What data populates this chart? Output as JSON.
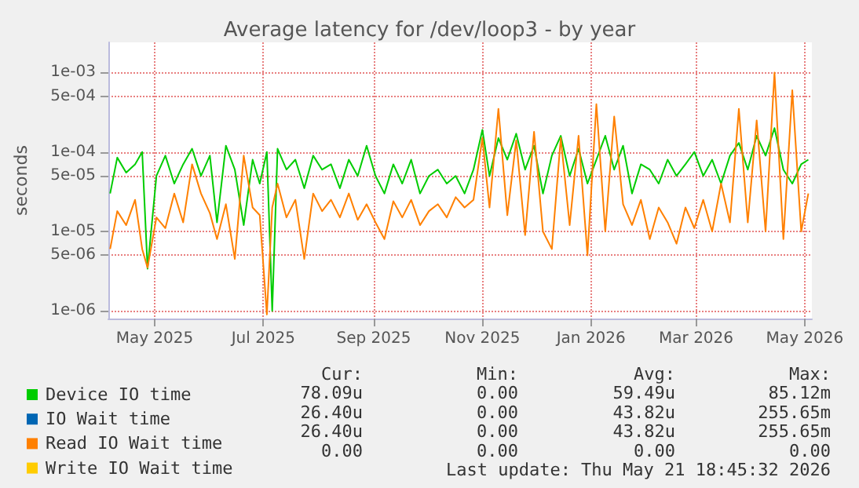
{
  "chart_data": {
    "type": "line",
    "title": "Average latency for /dev/loop3 - by year",
    "ylabel": "seconds",
    "x": [
      "2025-04-06",
      "2025-04-10",
      "2025-04-15",
      "2025-04-20",
      "2025-04-24",
      "2025-04-27",
      "2025-05-02",
      "2025-05-07",
      "2025-05-12",
      "2025-05-17",
      "2025-05-22",
      "2025-05-27",
      "2025-06-01",
      "2025-06-05",
      "2025-06-10",
      "2025-06-15",
      "2025-06-20",
      "2025-06-25",
      "2025-06-29",
      "2025-07-03",
      "2025-07-06",
      "2025-07-09",
      "2025-07-14",
      "2025-07-19",
      "2025-07-24",
      "2025-07-29",
      "2025-08-03",
      "2025-08-08",
      "2025-08-13",
      "2025-08-18",
      "2025-08-23",
      "2025-08-28",
      "2025-09-02",
      "2025-09-07",
      "2025-09-12",
      "2025-09-17",
      "2025-09-22",
      "2025-09-27",
      "2025-10-02",
      "2025-10-07",
      "2025-10-12",
      "2025-10-17",
      "2025-10-22",
      "2025-10-27",
      "2025-11-01",
      "2025-11-05",
      "2025-11-10",
      "2025-11-15",
      "2025-11-20",
      "2025-11-25",
      "2025-11-30",
      "2025-12-05",
      "2025-12-10",
      "2025-12-15",
      "2025-12-20",
      "2025-12-25",
      "2025-12-30",
      "2026-01-04",
      "2026-01-09",
      "2026-01-14",
      "2026-01-19",
      "2026-01-24",
      "2026-01-29",
      "2026-02-03",
      "2026-02-08",
      "2026-02-13",
      "2026-02-18",
      "2026-02-23",
      "2026-02-28",
      "2026-03-05",
      "2026-03-10",
      "2026-03-15",
      "2026-03-20",
      "2026-03-25",
      "2026-03-30",
      "2026-04-04",
      "2026-04-09",
      "2026-04-14",
      "2026-04-19",
      "2026-04-24",
      "2026-04-29",
      "2026-05-03"
    ],
    "series": [
      {
        "name": "Device IO time",
        "color": "#00cc00",
        "values": [
          3e-05,
          8.5e-05,
          5.5e-05,
          7e-05,
          0.0001,
          3.4e-06,
          5e-05,
          9e-05,
          4e-05,
          7e-05,
          0.00011,
          5e-05,
          9e-05,
          1.3e-05,
          0.00012,
          6e-05,
          1.2e-05,
          8e-05,
          4e-05,
          0.0001,
          1e-06,
          0.00011,
          6e-05,
          8e-05,
          3.5e-05,
          9e-05,
          6e-05,
          7e-05,
          3.5e-05,
          8e-05,
          5e-05,
          0.00012,
          5e-05,
          3e-05,
          7e-05,
          4e-05,
          8e-05,
          3e-05,
          5e-05,
          6e-05,
          4e-05,
          5e-05,
          3e-05,
          6e-05,
          0.00019,
          5e-05,
          0.00015,
          8e-05,
          0.00017,
          6e-05,
          0.00012,
          3e-05,
          9e-05,
          0.00016,
          5e-05,
          0.00011,
          4e-05,
          8e-05,
          0.00016,
          6e-05,
          0.00012,
          3e-05,
          7e-05,
          6e-05,
          4e-05,
          8e-05,
          5e-05,
          7e-05,
          0.0001,
          5e-05,
          8e-05,
          4e-05,
          9e-05,
          0.00013,
          6e-05,
          0.00016,
          9e-05,
          0.0002,
          6e-05,
          4e-05,
          7e-05,
          8e-05
        ]
      },
      {
        "name": "IO Wait time",
        "color": "#0066b3",
        "values": [
          null,
          null,
          null,
          null,
          null,
          null,
          null,
          null,
          null,
          null,
          null,
          null,
          null,
          null,
          null,
          null,
          null,
          null,
          null,
          null,
          null,
          null,
          null,
          null,
          null,
          null,
          null,
          null,
          null,
          null,
          null,
          null,
          null,
          null,
          null,
          null,
          null,
          null,
          null,
          null,
          null,
          null,
          null,
          null,
          null,
          null,
          null,
          null,
          null,
          null,
          null,
          null,
          null,
          null,
          null,
          null,
          null,
          null,
          null,
          null,
          null,
          null,
          null,
          null,
          null,
          null,
          null,
          null,
          null,
          null,
          null,
          null,
          null,
          null,
          null,
          null,
          null,
          null,
          null,
          null,
          null,
          null
        ]
      },
      {
        "name": "Read IO Wait time",
        "color": "#ff8000",
        "values": [
          6e-06,
          1.8e-05,
          1.2e-05,
          2.5e-05,
          6e-06,
          3.5e-06,
          1.5e-05,
          1.1e-05,
          3e-05,
          1.3e-05,
          7e-05,
          3e-05,
          1.7e-05,
          8e-06,
          2.2e-05,
          4.5e-06,
          9e-05,
          2e-05,
          1.6e-05,
          9e-07,
          2e-05,
          4e-05,
          1.5e-05,
          2.5e-05,
          4.5e-06,
          3e-05,
          1.8e-05,
          2.5e-05,
          1.5e-05,
          3e-05,
          1.4e-05,
          2.2e-05,
          1.3e-05,
          8e-06,
          2.4e-05,
          1.5e-05,
          2.5e-05,
          1.2e-05,
          1.8e-05,
          2.2e-05,
          1.5e-05,
          2.7e-05,
          2e-05,
          2.5e-05,
          0.00015,
          2e-05,
          0.00035,
          1.6e-05,
          0.00014,
          9e-06,
          0.00018,
          1e-05,
          6e-06,
          0.00015,
          1.2e-05,
          0.00016,
          5e-06,
          0.0004,
          1e-05,
          0.00028,
          2.2e-05,
          1.2e-05,
          2.5e-05,
          8e-06,
          2e-05,
          1.3e-05,
          7e-06,
          2e-05,
          1.1e-05,
          2.5e-05,
          1e-05,
          4e-05,
          1.3e-05,
          0.00035,
          1.3e-05,
          0.00025,
          1e-05,
          0.001,
          8e-06,
          0.0006,
          1e-05,
          3e-05
        ]
      },
      {
        "name": "Write IO Wait time",
        "color": "#ffcc00",
        "values": [
          null,
          null,
          null,
          null,
          null,
          null,
          null,
          null,
          null,
          null,
          null,
          null,
          null,
          null,
          null,
          null,
          null,
          null,
          null,
          null,
          null,
          null,
          null,
          null,
          null,
          null,
          null,
          null,
          null,
          null,
          null,
          null,
          null,
          null,
          null,
          null,
          null,
          null,
          null,
          null,
          null,
          null,
          null,
          null,
          null,
          null,
          null,
          null,
          null,
          null,
          null,
          null,
          null,
          null,
          null,
          null,
          null,
          null,
          null,
          null,
          null,
          null,
          null,
          null,
          null,
          null,
          null,
          null,
          null,
          null,
          null,
          null,
          null,
          null,
          null,
          null,
          null,
          null,
          null,
          null,
          null,
          null
        ]
      }
    ],
    "xlim": [
      "2025-04-05",
      "2026-05-05"
    ],
    "xticks": [
      {
        "value": "2025-05-01",
        "label": "May 2025"
      },
      {
        "value": "2025-07-01",
        "label": "Jul 2025"
      },
      {
        "value": "2025-09-01",
        "label": "Sep 2025"
      },
      {
        "value": "2025-11-01",
        "label": "Nov 2025"
      },
      {
        "value": "2026-01-01",
        "label": "Jan 2026"
      },
      {
        "value": "2026-03-01",
        "label": "Mar 2026"
      },
      {
        "value": "2026-05-01",
        "label": "May 2026"
      }
    ],
    "ylim": [
      8e-07,
      0.0024
    ],
    "yticks": [
      {
        "value": 1e-06,
        "label": "1e-06"
      },
      {
        "value": 5e-06,
        "label": "5e-06"
      },
      {
        "value": 1e-05,
        "label": "1e-05"
      },
      {
        "value": 5e-05,
        "label": "5e-05"
      },
      {
        "value": 0.0001,
        "label": "1e-04"
      },
      {
        "value": 0.0005,
        "label": "5e-04"
      },
      {
        "value": 0.001,
        "label": "1e-03"
      }
    ],
    "log": "y",
    "grid": true,
    "legend": "bottom left",
    "marker": "none",
    "annotations": [
      "Cur:",
      "Min:",
      "Avg:",
      "Max:",
      "78.09u",
      "0.00",
      "59.49u",
      "85.12m",
      "26.40u",
      "0.00",
      "43.82u",
      "255.65m",
      "26.40u",
      "0.00",
      "43.82u",
      "255.65m",
      "0.00",
      "0.00",
      "0.00",
      "0.00",
      "Last update: Thu May 21 18:45:32 2026"
    ]
  }
}
